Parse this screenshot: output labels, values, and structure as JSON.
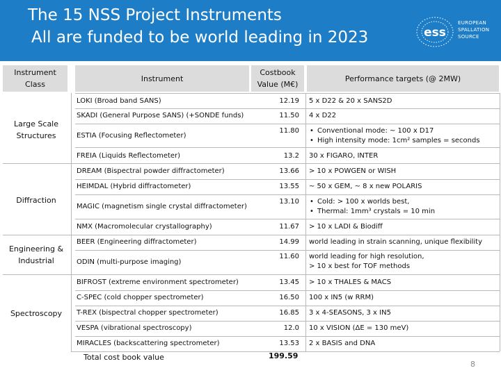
{
  "title": {
    "line1": "The 15 NSS Project Instruments",
    "line2": "All are funded to be world leading in 2023"
  },
  "logo": {
    "mark": "ess",
    "line1": "EUROPEAN",
    "line2": "SPALLATION",
    "line3": "SOURCE"
  },
  "headers": {
    "class": "Instrument Class",
    "instrument": "Instrument",
    "cost": "Costbook Value (M€)",
    "targets": "Performance targets (@ 2MW)"
  },
  "classes": {
    "large_scale": "Large Scale Structures",
    "diffraction": "Diffraction",
    "engineering": "Engineering & Industrial",
    "spectroscopy": "Spectroscopy"
  },
  "rows": [
    {
      "instrument": "LOKI (Broad band SANS)",
      "cost": "12.19",
      "target": "5 x D22 & 20 x SANS2D"
    },
    {
      "instrument": "SKADI (General Purpose SANS) (+SONDE funds)",
      "cost": "11.50",
      "target": "4 x D22"
    },
    {
      "instrument": "ESTIA (Focusing Reflectometer)",
      "cost": "11.80",
      "target1": "Conventional mode: ~ 100 x D17",
      "target2": "High intensity mode: 1cm² samples  = seconds"
    },
    {
      "instrument": "FREIA (Liquids Reflectometer)",
      "cost": "13.2",
      "target": "30 x FIGARO, INTER"
    },
    {
      "instrument": "DREAM (Bispectral powder diffractometer)",
      "cost": "13.66",
      "target": "> 10 x POWGEN or WISH"
    },
    {
      "instrument": "HEIMDAL (Hybrid diffractometer)",
      "cost": "13.55",
      "target": "~ 50 x GEM, ~ 8 x new POLARIS"
    },
    {
      "instrument": "MAGIC (magnetism single crystal diffractometer)",
      "cost": "13.10",
      "target1": "Cold: > 100 x worlds best,",
      "target2": "Thermal: 1mm³ crystals = 10 min"
    },
    {
      "instrument": "NMX (Macromolecular crystallography)",
      "cost": "11.67",
      "target": "> 10 x LADI & Biodiff"
    },
    {
      "instrument": "BEER (Engineering diffractometer)",
      "cost": "14.99",
      "target": "world leading in strain scanning, unique flexibility"
    },
    {
      "instrument": "ODIN (multi-purpose imaging)",
      "cost": "11.60",
      "target1": "world leading for high resolution,",
      "target2": "> 10 x best for  TOF methods"
    },
    {
      "instrument": "BIFROST (extreme environment spectrometer)",
      "cost": "13.45",
      "target": "> 10 x THALES & MACS"
    },
    {
      "instrument": "C-SPEC (cold chopper spectrometer)",
      "cost": "16.50",
      "target": "100 x IN5 (w RRM)"
    },
    {
      "instrument": "T-REX (bispectral chopper spectrometer)",
      "cost": "16.85",
      "target": "3 x 4-SEASONS,  3 x IN5"
    },
    {
      "instrument": "VESPA (vibrational spectroscopy)",
      "cost": "12.0",
      "target": "10 x VISION (ΔE = 130 meV)"
    },
    {
      "instrument": "MIRACLES (backscattering spectrometer)",
      "cost": "13.53",
      "target": "2 x BASIS and DNA"
    }
  ],
  "total": {
    "label": "Total cost book value",
    "value": "199.59"
  },
  "page_number": "8",
  "colors": {
    "banner": "#1e7dc7",
    "header_fill": "#dcdcdc",
    "rule": "#b8b8b8"
  }
}
